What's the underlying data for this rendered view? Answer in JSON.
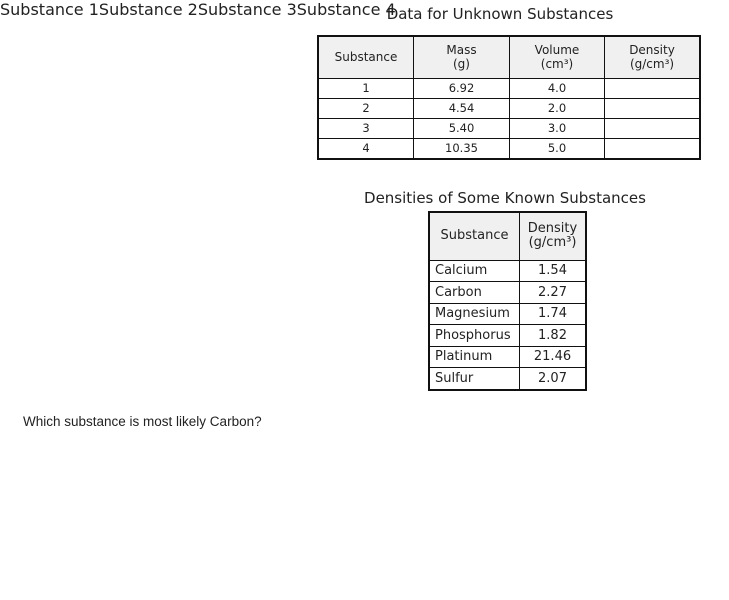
{
  "unknown_table": {
    "title": "Data for Unknown Substances",
    "headers": [
      [
        "Substance"
      ],
      [
        "Mass",
        "(g)"
      ],
      [
        "Volume",
        "(cm³)"
      ],
      [
        "Density",
        "(g/cm³)"
      ]
    ],
    "rows": [
      [
        "1",
        "6.92",
        "4.0"
      ],
      [
        "2",
        "4.54",
        "2.0"
      ],
      [
        "3",
        "5.40",
        "3.0"
      ],
      [
        "4",
        "10.35",
        "5.0"
      ]
    ]
  },
  "known_table": {
    "title": "Densities of Some Known Substances",
    "headers": [
      [
        "Substance"
      ],
      [
        "Density",
        "(g/cm³)"
      ]
    ],
    "rows": [
      [
        "Calcium",
        "1.54"
      ],
      [
        "Carbon",
        "2.27"
      ],
      [
        "Magnesium",
        "1.74"
      ],
      [
        "Phosphorus",
        "1.82"
      ],
      [
        "Platinum",
        "21.46"
      ],
      [
        "Sulfur",
        "2.07"
      ]
    ]
  },
  "question": {
    "prompt": "Which substance is most likely Carbon?",
    "options": [
      "Substance 1",
      "Substance 2",
      "Substance 3",
      "Substance 4"
    ]
  }
}
